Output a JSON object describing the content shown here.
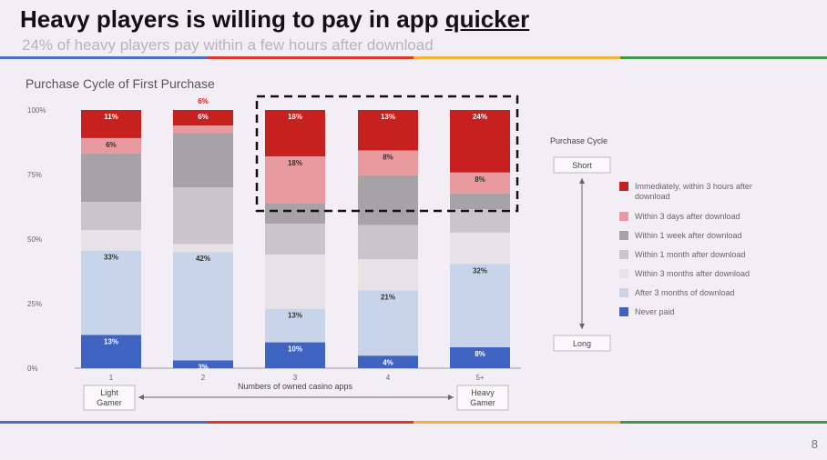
{
  "header": {
    "title_main": "Heavy players is willing to pay in app ",
    "title_emph": "quicker",
    "subtitle": "24% of heavy players pay within a few hours after download"
  },
  "footer": {
    "page_number": "8"
  },
  "colors": {
    "rule": [
      "#4a72c4",
      "#d83a2e",
      "#f0b43a",
      "#3d9a4a"
    ],
    "segments": [
      "#c6201f",
      "#e89a9e",
      "#a5a3a8",
      "#c9c6cb",
      "#e6e3e7",
      "#c8d4ea",
      "#3e63c1"
    ]
  },
  "chart_data": {
    "type": "bar",
    "stacked": true,
    "title": "Purchase Cycle of First Purchase",
    "xlabel": "Numbers of owned casino apps",
    "ylabel": "",
    "ylim": [
      0,
      100
    ],
    "yticks": [
      "0%",
      "25%",
      "50%",
      "75%",
      "100%"
    ],
    "categories": [
      "1",
      "2",
      "3",
      "4",
      "5+"
    ],
    "legend_title": "Purchase Cycle",
    "legend_position": "right",
    "series": [
      {
        "name": "Immediately, within 3 hours after download",
        "values": [
          11,
          6,
          18,
          13,
          24
        ]
      },
      {
        "name": "Within 3 days after download",
        "values": [
          6,
          3,
          18,
          8,
          8
        ]
      },
      {
        "name": "Within 1 week after download",
        "values": [
          19,
          21,
          8,
          16,
          6
        ]
      },
      {
        "name": "Within 1 month after download",
        "values": [
          11,
          22,
          12,
          11,
          9
        ]
      },
      {
        "name": "Within 3 months after download",
        "values": [
          8,
          3,
          21,
          10,
          12
        ]
      },
      {
        "name": "After 3 months of download",
        "values": [
          33,
          42,
          13,
          21,
          32
        ]
      },
      {
        "name": "Never paid",
        "values": [
          13,
          3,
          10,
          4,
          8
        ]
      }
    ],
    "data_labels": [
      [
        "11%",
        "6%",
        "",
        "",
        "",
        "33%",
        "13%"
      ],
      [
        "6%",
        "",
        "",
        "",
        "",
        "42%",
        "3%"
      ],
      [
        "18%",
        "18%",
        "",
        "",
        "",
        "13%",
        "10%"
      ],
      [
        "13%",
        "8%",
        "",
        "",
        "",
        "21%",
        "4%"
      ],
      [
        "24%",
        "8%",
        "",
        "",
        "",
        "32%",
        "8%"
      ]
    ],
    "top_labels": [
      "",
      "6%",
      "",
      "",
      ""
    ],
    "scale": {
      "short": "Short",
      "long": "Long"
    },
    "range_labels": {
      "left": "Light Gamer",
      "right": "Heavy Gamer"
    },
    "highlighted_categories": [
      "3",
      "4",
      "5+"
    ]
  }
}
